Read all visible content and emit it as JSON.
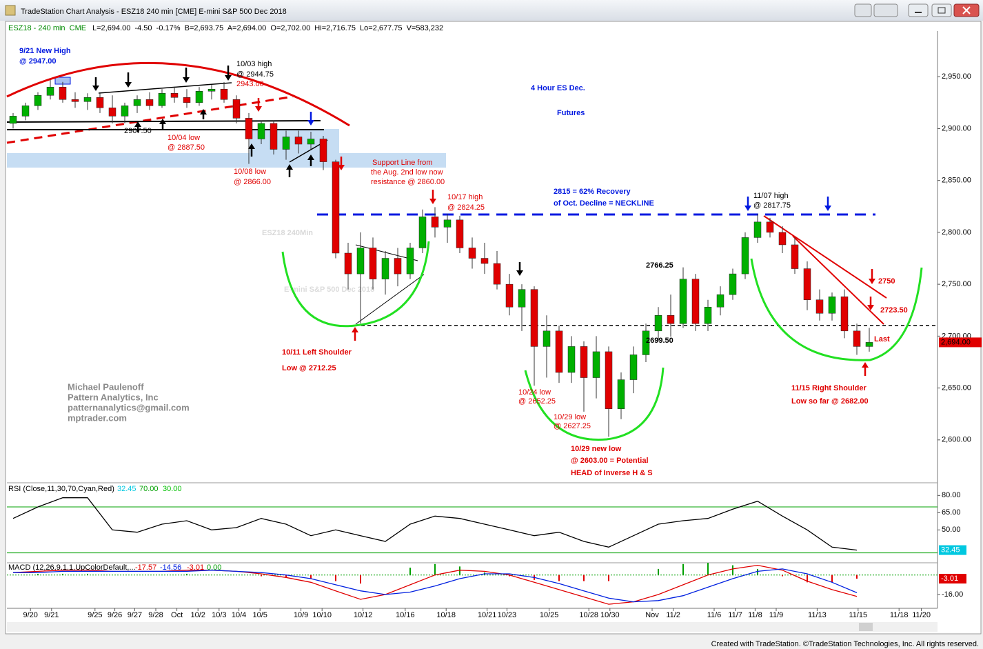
{
  "window": {
    "title": "TradeStation Chart Analysis - ESZ18 240 min [CME] E-mini S&P 500 Dec 2018",
    "footer": "Created with TradeStation. ©TradeStation Technologies, Inc. All rights reserved."
  },
  "chart_data": [
    {
      "type": "candlestick",
      "symbol": "ESZ18 - 240 min  CME",
      "quote": "L=2,694.00  -4.50  -0.17%  B=2,693.75  A=2,694.00  O=2,702.00  Hi=2,716.75  Lo=2,677.75  V=583,232",
      "watermark": [
        "ESZ18 240Min",
        "E-mini S&P 500 Dec 2018"
      ],
      "up_color": "#00b000",
      "down_color": "#e00000",
      "x": [
        0,
        1,
        2,
        3,
        4,
        5,
        6,
        7,
        8,
        9,
        10,
        11,
        12,
        13,
        14,
        15,
        16,
        17,
        18,
        19,
        20,
        21,
        22,
        23,
        24,
        25,
        26,
        27,
        28,
        29,
        30,
        31,
        32,
        33,
        34,
        35,
        36,
        37,
        38,
        39,
        40,
        41,
        42,
        43,
        44,
        45,
        46,
        47,
        48,
        49,
        50,
        51,
        52,
        53,
        54,
        55,
        56,
        57,
        58,
        59,
        60,
        61,
        62,
        63,
        64,
        65,
        66,
        67,
        68,
        69
      ],
      "open": [
        2905,
        2912,
        2922,
        2932,
        2940,
        2928,
        2926,
        2930,
        2920,
        2912,
        2922,
        2928,
        2922,
        2934,
        2930,
        2925,
        2936,
        2938,
        2928,
        2910,
        2890,
        2905,
        2880,
        2892,
        2885,
        2890,
        2868,
        2780,
        2760,
        2785,
        2755,
        2775,
        2760,
        2785,
        2815,
        2805,
        2812,
        2785,
        2775,
        2770,
        2750,
        2728,
        2745,
        2690,
        2705,
        2665,
        2690,
        2660,
        2685,
        2630,
        2658,
        2682,
        2705,
        2720,
        2712,
        2755,
        2712,
        2728,
        2740,
        2760,
        2795,
        2810,
        2800,
        2788,
        2765,
        2735,
        2722,
        2738,
        2705,
        2690
      ],
      "high": [
        2915,
        2925,
        2935,
        2947,
        2945,
        2935,
        2934,
        2935,
        2932,
        2925,
        2932,
        2935,
        2938,
        2940,
        2938,
        2940,
        2942,
        2944.75,
        2932,
        2915,
        2908,
        2908,
        2898,
        2898,
        2897,
        2893,
        2870,
        2790,
        2800,
        2795,
        2782,
        2785,
        2790,
        2822,
        2824.25,
        2818,
        2816,
        2795,
        2790,
        2782,
        2760,
        2750,
        2748,
        2720,
        2710,
        2700,
        2695,
        2700,
        2690,
        2665,
        2690,
        2712,
        2728,
        2740,
        2766.25,
        2760,
        2735,
        2748,
        2765,
        2800,
        2817.75,
        2814,
        2806,
        2795,
        2772,
        2745,
        2742,
        2745,
        2712,
        2708
      ],
      "low": [
        2900,
        2908,
        2918,
        2928,
        2925,
        2920,
        2918,
        2915,
        2905,
        2905,
        2915,
        2918,
        2920,
        2925,
        2920,
        2922,
        2928,
        2925,
        2905,
        2866,
        2885,
        2875,
        2870,
        2876,
        2880,
        2860,
        2775,
        2745,
        2712.25,
        2745,
        2740,
        2748,
        2755,
        2780,
        2795,
        2790,
        2780,
        2765,
        2760,
        2745,
        2720,
        2705,
        2652.25,
        2660,
        2655,
        2655,
        2627.25,
        2640,
        2603,
        2620,
        2645,
        2675,
        2695,
        2699.5,
        2708,
        2705,
        2705,
        2720,
        2735,
        2755,
        2790,
        2795,
        2780,
        2760,
        2725,
        2715,
        2715,
        2698,
        2682,
        2685
      ],
      "close": [
        2912,
        2922,
        2932,
        2940,
        2928,
        2926,
        2930,
        2920,
        2912,
        2922,
        2928,
        2922,
        2934,
        2930,
        2925,
        2936,
        2938,
        2928,
        2910,
        2890,
        2905,
        2880,
        2892,
        2885,
        2890,
        2868,
        2780,
        2760,
        2785,
        2755,
        2775,
        2760,
        2785,
        2815,
        2805,
        2812,
        2785,
        2775,
        2770,
        2750,
        2728,
        2745,
        2690,
        2705,
        2665,
        2690,
        2660,
        2685,
        2630,
        2658,
        2682,
        2705,
        2720,
        2712,
        2755,
        2712,
        2728,
        2740,
        2760,
        2795,
        2810,
        2800,
        2788,
        2765,
        2735,
        2722,
        2738,
        2705,
        2690,
        2694
      ],
      "last_value": {
        "value": 2694,
        "label": "2,694.00"
      },
      "xlim": [
        -0.5,
        74.5
      ],
      "xticks": [
        {
          "value": 1.4,
          "label": "9/20"
        },
        {
          "value": 3.1,
          "label": "9/21"
        },
        {
          "value": 6.6,
          "label": "9/25"
        },
        {
          "value": 8.2,
          "label": "9/26"
        },
        {
          "value": 9.8,
          "label": "9/27"
        },
        {
          "value": 11.5,
          "label": "9/28"
        },
        {
          "value": 13.2,
          "label": "Oct"
        },
        {
          "value": 14.9,
          "label": "10/2"
        },
        {
          "value": 16.6,
          "label": "10/3"
        },
        {
          "value": 18.2,
          "label": "10/4"
        },
        {
          "value": 19.9,
          "label": "10/5"
        },
        {
          "value": 23.2,
          "label": "10/9"
        },
        {
          "value": 24.9,
          "label": "10/10"
        },
        {
          "value": 28.2,
          "label": "10/12"
        },
        {
          "value": 31.6,
          "label": "10/16"
        },
        {
          "value": 34.9,
          "label": "10/18"
        },
        {
          "value": 38.2,
          "label": "10/21"
        },
        {
          "value": 39.8,
          "label": "10/23"
        },
        {
          "value": 43.2,
          "label": "10/25"
        },
        {
          "value": 46.4,
          "label": "10/28"
        },
        {
          "value": 48.1,
          "label": "10/30"
        },
        {
          "value": 51.5,
          "label": "Nov"
        },
        {
          "value": 53.2,
          "label": "11/2"
        },
        {
          "value": 56.5,
          "label": "11/6"
        },
        {
          "value": 58.2,
          "label": "11/7"
        },
        {
          "value": 59.8,
          "label": "11/8"
        },
        {
          "value": 61.5,
          "label": "11/9"
        },
        {
          "value": 64.8,
          "label": "11/13"
        },
        {
          "value": 68.1,
          "label": "11/15"
        },
        {
          "value": 71.4,
          "label": "11/18"
        },
        {
          "value": 73.2,
          "label": "11/20"
        }
      ],
      "ylim": [
        2562,
        2994
      ],
      "yticks": [
        {
          "value": 2950,
          "label": "2,950.00"
        },
        {
          "value": 2900,
          "label": "2,900.00"
        },
        {
          "value": 2850,
          "label": "2,850.00"
        },
        {
          "value": 2800,
          "label": "2,800.00"
        },
        {
          "value": 2750,
          "label": "2,750.00"
        },
        {
          "value": 2700,
          "label": "2,700.00"
        },
        {
          "value": 2650,
          "label": "2,650.00"
        },
        {
          "value": 2600,
          "label": "2,600.00"
        }
      ],
      "annotations": [
        "9/21 New High",
        "@ 2947.00",
        "10/03 high",
        "@ 2944.75",
        "2943.00",
        "2907.50",
        "10/04 low",
        "@ 2887.50",
        "10/08 low",
        "@ 2866.00",
        "Support Line from",
        "the Aug. 2nd low now",
        "resistance @ 2860.00",
        "10/17 high",
        "@ 2824.25",
        "4 Hour ES Dec.",
        "Futures",
        "2815 = 62% Recovery",
        "of Oct. Decline = NECKLINE",
        "11/07 high",
        "@ 2817.75",
        "2766.25",
        "2699.50",
        "10/11 Left Shoulder",
        "Low @ 2712.25",
        "10/24 low",
        "@ 2652.25",
        "10/29 low",
        "@ 2627.25",
        "10/29 new low",
        "@ 2603.00 = Potential",
        "HEAD of Inverse H & S",
        "2750",
        "2723.50",
        "Last",
        "11/15 Right Shoulder",
        "Low so far @ 2682.00",
        "Michael Paulenoff",
        "Pattern Analytics, Inc",
        "patternanalytics@gmail.com",
        "mptrader.com"
      ]
    },
    {
      "type": "line",
      "header": "RSI (Close,11,30,70,Cyan,Red)",
      "legend_values": [
        "32.45",
        "70.00",
        "30.00"
      ],
      "x": [
        0,
        2,
        4,
        6,
        8,
        10,
        12,
        14,
        16,
        18,
        20,
        22,
        24,
        26,
        28,
        30,
        32,
        34,
        36,
        38,
        40,
        42,
        44,
        46,
        48,
        50,
        52,
        54,
        56,
        58,
        60,
        62,
        64,
        66,
        68
      ],
      "values": [
        60,
        70,
        78,
        78,
        50,
        48,
        55,
        58,
        50,
        52,
        60,
        55,
        45,
        50,
        45,
        40,
        55,
        62,
        60,
        55,
        50,
        45,
        48,
        40,
        35,
        45,
        55,
        58,
        60,
        68,
        75,
        62,
        50,
        35,
        32.45
      ],
      "color": "#000000",
      "levels": [
        70,
        30
      ],
      "level_color": "#00a000",
      "ylim": [
        22,
        88
      ],
      "yticks": [
        {
          "value": 80,
          "label": "80.00"
        },
        {
          "value": 65,
          "label": "65.00"
        },
        {
          "value": 50,
          "label": "50.00"
        }
      ]
    },
    {
      "type": "line",
      "header": "MACD (12,26,9,1,1,UpColorDefault,...",
      "legend_values": [
        "-17.57",
        "-14.56",
        "-3.01",
        "0.00"
      ],
      "x": [
        0,
        2,
        4,
        6,
        8,
        10,
        12,
        14,
        16,
        18,
        20,
        22,
        24,
        26,
        28,
        30,
        32,
        34,
        36,
        38,
        40,
        42,
        44,
        46,
        48,
        50,
        52,
        54,
        56,
        58,
        60,
        62,
        64,
        66,
        68
      ],
      "series": [
        {
          "color": "#e00000",
          "values": [
            2,
            3,
            4,
            4,
            3,
            3,
            3,
            4,
            4,
            3,
            1,
            -2,
            -6,
            -13,
            -20,
            -16,
            -8,
            0,
            4,
            3,
            0,
            -6,
            -12,
            -18,
            -24,
            -22,
            -16,
            -8,
            0,
            5,
            8,
            4,
            -5,
            -12,
            -17.57
          ]
        },
        {
          "color": "#0020e0",
          "values": [
            2,
            2,
            3,
            3,
            3,
            3,
            3,
            3,
            4,
            3,
            2,
            0,
            -3,
            -8,
            -13,
            -16,
            -14,
            -9,
            -3,
            1,
            1,
            -2,
            -7,
            -13,
            -19,
            -22,
            -21,
            -17,
            -10,
            -3,
            3,
            5,
            1,
            -6,
            -14.56
          ]
        }
      ],
      "histogram": {
        "up_color": "#00a000",
        "down_color": "#e00000",
        "values": [
          0,
          1,
          1,
          1,
          0,
          0,
          0,
          1,
          0,
          0,
          -1,
          -2,
          -3,
          -5,
          -7,
          0,
          6,
          9,
          7,
          2,
          -1,
          -4,
          -5,
          -5,
          -5,
          0,
          5,
          9,
          10,
          8,
          5,
          -1,
          -6,
          -6,
          -3.01
        ]
      },
      "zero_color": "#00a000",
      "ylim": [
        -26.2,
        8.9
      ],
      "yticks": [
        {
          "value": -16,
          "label": "-16.00"
        }
      ]
    }
  ]
}
